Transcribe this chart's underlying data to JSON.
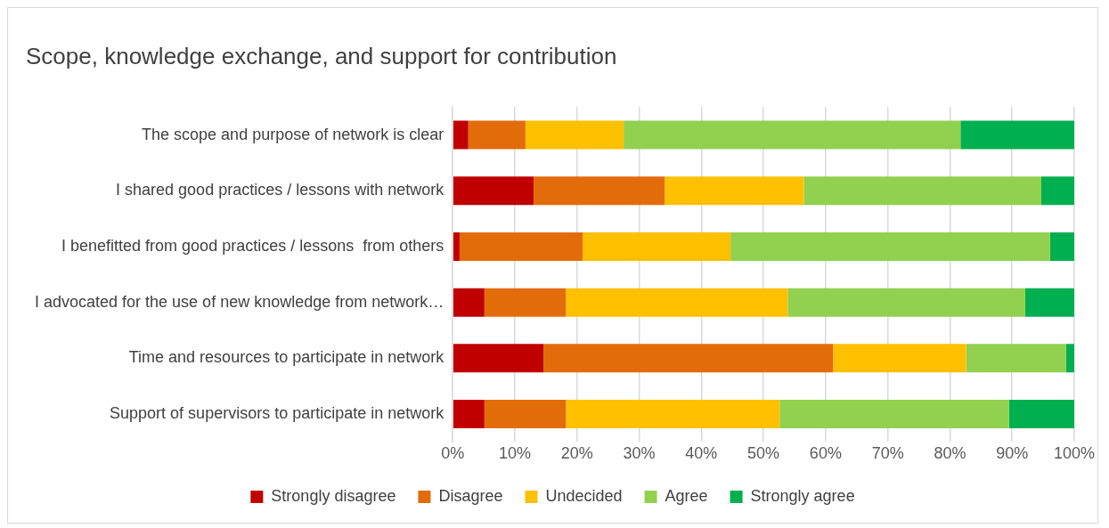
{
  "chart_data": {
    "type": "bar",
    "orientation": "horizontal",
    "stacked": true,
    "title": "Scope, knowledge exchange, and support for contribution",
    "categories": [
      "The scope and purpose of network is clear",
      "I shared good practices / lessons with network",
      "I benefitted from good practices / lessons  from others",
      "I advocated for the use of new knowledge from network…",
      "Time and resources to participate in network",
      "Support of supervisors to participate in network"
    ],
    "series": [
      {
        "name": "Strongly disagree",
        "color": "#c00000",
        "values": [
          2.5,
          13.0,
          1.1,
          5.1,
          14.6,
          5.1
        ]
      },
      {
        "name": "Disagree",
        "color": "#e36c0a",
        "values": [
          9.2,
          21.1,
          19.8,
          13.1,
          46.6,
          13.1
        ]
      },
      {
        "name": "Undecided",
        "color": "#ffc000",
        "values": [
          15.8,
          22.4,
          23.8,
          35.7,
          21.4,
          34.4
        ]
      },
      {
        "name": "Agree",
        "color": "#92d050",
        "values": [
          54.2,
          38.2,
          51.4,
          38.2,
          16.1,
          36.9
        ]
      },
      {
        "name": "Strongly agree",
        "color": "#00b050",
        "values": [
          18.3,
          5.3,
          3.9,
          7.9,
          1.3,
          10.5
        ]
      }
    ],
    "xlim": [
      0,
      100
    ],
    "xticks": [
      {
        "value": 0,
        "label": "0%"
      },
      {
        "value": 10,
        "label": "10%"
      },
      {
        "value": 20,
        "label": "20%"
      },
      {
        "value": 30,
        "label": "30%"
      },
      {
        "value": 40,
        "label": "40%"
      },
      {
        "value": 50,
        "label": "50%"
      },
      {
        "value": 60,
        "label": "60%"
      },
      {
        "value": 70,
        "label": "70%"
      },
      {
        "value": 80,
        "label": "80%"
      },
      {
        "value": 90,
        "label": "90%"
      },
      {
        "value": 100,
        "label": "100%"
      }
    ],
    "grid": "x",
    "legend": "bottom"
  }
}
